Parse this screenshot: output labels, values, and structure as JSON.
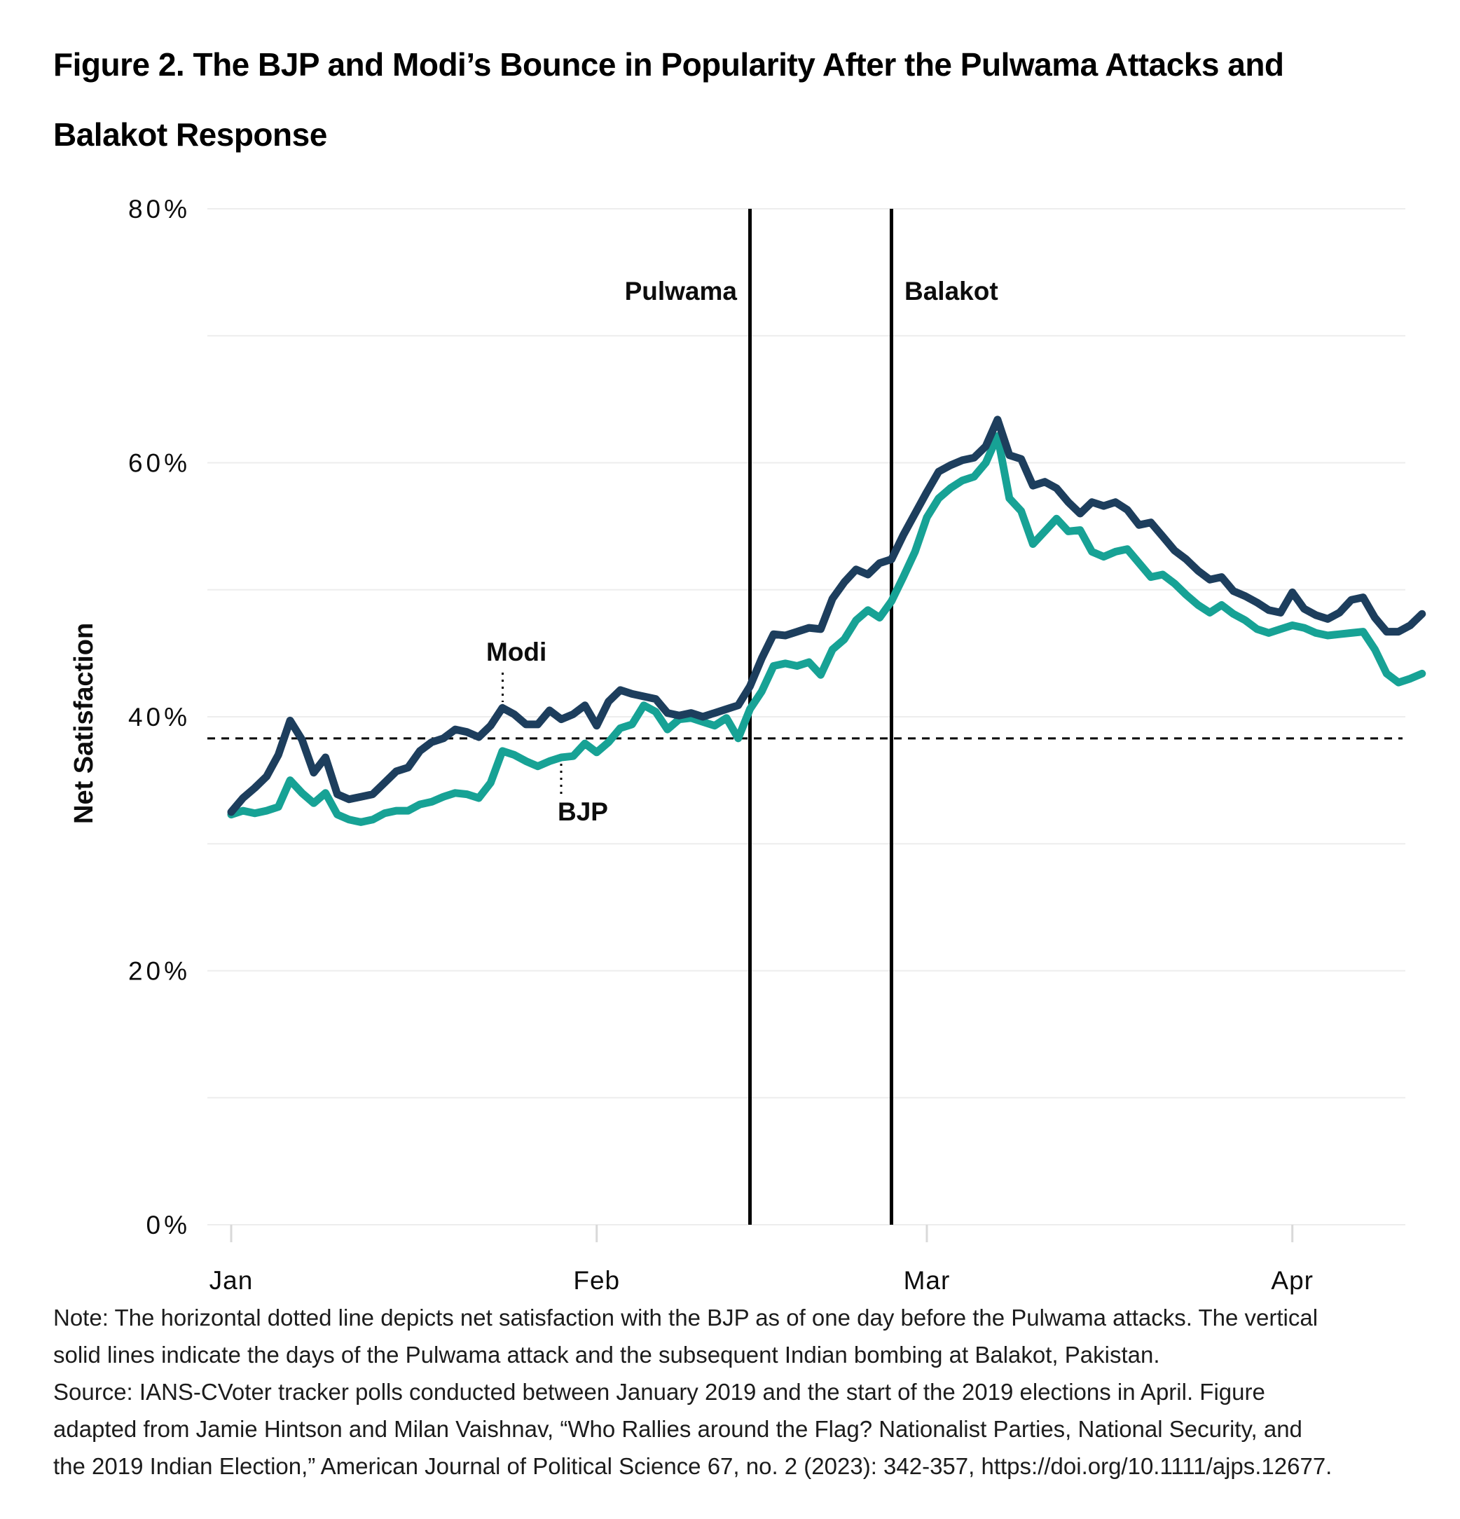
{
  "title": {
    "lines": [
      "Figure 2. The BJP and Modi’s Bounce in Popularity After the Pulwama Attacks and",
      "Balakot Response"
    ]
  },
  "chart_data": {
    "type": "line",
    "title": "Figure 2. The BJP and Modi’s Bounce in Popularity After the Pulwama Attacks and Balakot Response",
    "ylabel": "Net Satisfaction",
    "ylim": [
      0,
      80
    ],
    "grid": "horizontal lines every 10%",
    "y_ticks": [
      {
        "label": "80%",
        "value": 80
      },
      {
        "label": "60%",
        "value": 60
      },
      {
        "label": "40%",
        "value": 40
      },
      {
        "label": "20%",
        "value": 20
      },
      {
        "label": "0%",
        "value": 0
      }
    ],
    "x_unit": "daily tracker polls, January through early April",
    "x_ticks": [
      {
        "label": "Jan",
        "day_index": 0
      },
      {
        "label": "Feb",
        "day_index": 31
      },
      {
        "label": "Mar",
        "day_index": 59
      },
      {
        "label": "Apr",
        "day_index": 90
      }
    ],
    "event_lines": [
      {
        "label": "Pulwama",
        "day_index": 44,
        "date": "Feb 14"
      },
      {
        "label": "Balakot",
        "day_index": 56,
        "date": "Feb 26"
      }
    ],
    "reference_line": {
      "style": "horizontal dotted",
      "value": 38.3,
      "depicts": "net satisfaction with the BJP as of one day before the Pulwama attacks"
    },
    "series": [
      {
        "name": "Modi",
        "color": "#1d3e5d",
        "values": [
          32.5,
          33.6,
          34.4,
          35.3,
          37.0,
          39.7,
          38.2,
          35.6,
          36.8,
          33.9,
          33.5,
          33.7,
          33.9,
          34.8,
          35.7,
          36.0,
          37.3,
          38.0,
          38.3,
          39.0,
          38.8,
          38.4,
          39.3,
          40.7,
          40.2,
          39.4,
          39.4,
          40.5,
          39.8,
          40.2,
          40.9,
          39.3,
          41.2,
          42.1,
          41.8,
          41.6,
          41.4,
          40.3,
          40.1,
          40.3,
          40.0,
          40.3,
          40.6,
          40.9,
          42.4,
          44.6,
          46.5,
          46.4,
          46.7,
          47.0,
          46.9,
          49.3,
          50.6,
          51.6,
          51.2,
          52.1,
          52.4,
          54.3,
          56.0,
          57.7,
          59.3,
          59.8,
          60.2,
          60.4,
          61.3,
          63.4,
          60.6,
          60.3,
          58.2,
          58.5,
          58.0,
          56.9,
          56.0,
          56.9,
          56.6,
          56.9,
          56.3,
          55.1,
          55.3,
          54.2,
          53.1,
          52.4,
          51.5,
          50.8,
          51.0,
          49.9,
          49.5,
          49.0,
          48.4,
          48.2,
          49.8,
          48.5,
          48.0,
          47.7,
          48.2,
          49.2,
          49.4,
          47.8,
          46.7,
          46.7,
          47.2,
          48.1
        ]
      },
      {
        "name": "BJP",
        "color": "#17a295",
        "values": [
          32.3,
          32.6,
          32.4,
          32.6,
          32.9,
          35.0,
          34.0,
          33.2,
          34.0,
          32.3,
          31.9,
          31.7,
          31.9,
          32.4,
          32.6,
          32.6,
          33.1,
          33.3,
          33.7,
          34.0,
          33.9,
          33.6,
          34.8,
          37.3,
          37.0,
          36.5,
          36.1,
          36.5,
          36.8,
          36.9,
          37.9,
          37.2,
          38.0,
          39.1,
          39.4,
          40.9,
          40.4,
          39.0,
          39.8,
          39.9,
          39.6,
          39.3,
          39.9,
          38.3,
          40.6,
          42.0,
          44.0,
          44.2,
          44.0,
          44.3,
          43.3,
          45.3,
          46.1,
          47.6,
          48.4,
          47.8,
          49.1,
          51.0,
          53.0,
          55.7,
          57.2,
          58.0,
          58.6,
          58.9,
          60.0,
          62.1,
          57.2,
          56.2,
          53.6,
          54.6,
          55.6,
          54.6,
          54.7,
          53.0,
          52.6,
          53.0,
          53.2,
          52.1,
          51.0,
          51.2,
          50.5,
          49.6,
          48.8,
          48.2,
          48.8,
          48.1,
          47.6,
          46.9,
          46.6,
          46.9,
          47.2,
          47.0,
          46.6,
          46.4,
          46.5,
          46.6,
          46.7,
          45.3,
          43.4,
          42.7,
          43.0,
          43.4
        ]
      }
    ]
  },
  "note": {
    "lines": [
      "Note: The horizontal dotted line depicts net satisfaction with the BJP as of one day before the Pulwama attacks. The vertical",
      "solid lines indicate the days of the Pulwama attack and the subsequent Indian bombing at Balakot, Pakistan.",
      "Source: IANS-CVoter tracker polls conducted between January 2019 and the start of the 2019 elections in April. Figure",
      "adapted from Jamie Hintson and Milan Vaishnav, “Who Rallies around the Flag? Nationalist Parties, National Security, and",
      "the 2019 Indian Election,” American Journal of Political Science 67, no. 2 (2023): 342-357, https://doi.org/10.1111/ajps.12677."
    ]
  }
}
